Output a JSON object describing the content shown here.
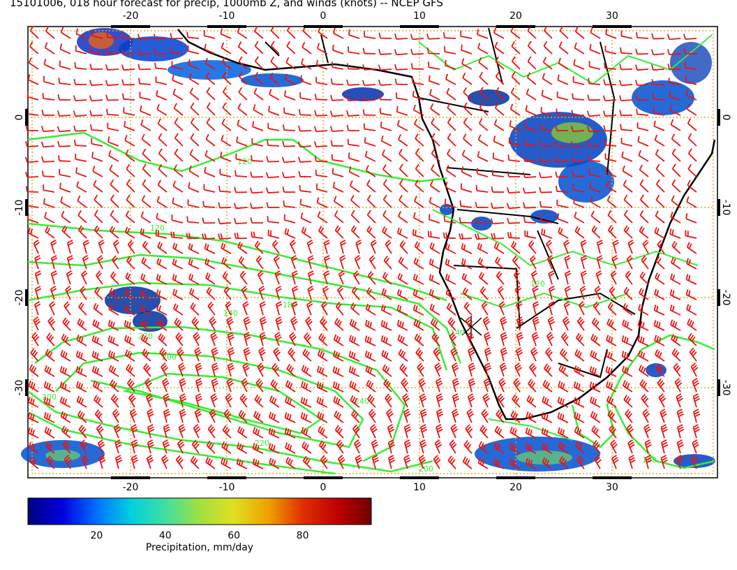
{
  "title": "15101006, 018 hour forecast for precip, 1000mb Z, and winds (knots) -- NCEP GFS",
  "map": {
    "lon_ticks": [
      "-20",
      "-10",
      "0",
      "10",
      "20",
      "30"
    ],
    "lat_ticks": [
      "0",
      "-10",
      "-20",
      "-30"
    ],
    "contour_labels": [
      "120",
      "140",
      "160",
      "180",
      "200",
      "220",
      "240"
    ],
    "colors": {
      "contours": "#33ee33",
      "wind_barbs": "#ee1111",
      "coastline": "#000000",
      "graticule": "#ddaa22"
    }
  },
  "colorbar": {
    "label": "Precipitation, mm/day",
    "ticks": [
      "20",
      "40",
      "60",
      "80"
    ],
    "colors": [
      "#000080",
      "#0000e0",
      "#0070ff",
      "#00d0e0",
      "#40e0a0",
      "#a0e040",
      "#e0e020",
      "#f0a000",
      "#e03000",
      "#c00000",
      "#700000"
    ]
  }
}
